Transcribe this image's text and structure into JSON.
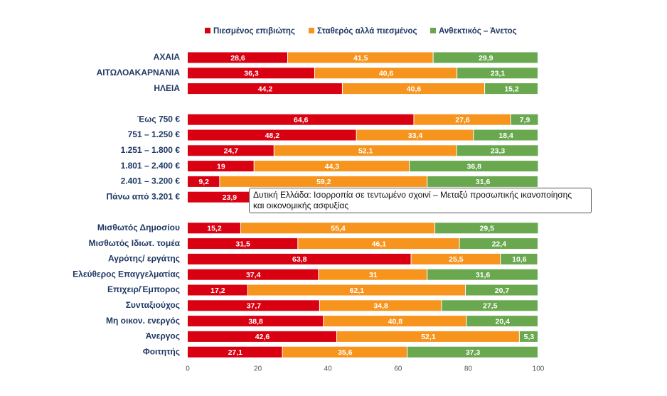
{
  "chart_data": {
    "type": "stacked-bar-horizontal",
    "categories": [
      "ΑΧΑΙΑ",
      "ΑΙΤΩΛΟΑΚΑΡΝΑΝΙΑ",
      "ΗΛΕΙΑ",
      null,
      "Έως 750 €",
      "751 – 1.250 €",
      "1.251 – 1.800 €",
      "1.801 – 2.400 €",
      "2.401 – 3.200 €",
      "Πάνω από 3.201 €",
      null,
      "Μισθωτός Δημοσίου",
      "Μισθωτός Ιδιωτ. τομέα",
      "Αγρότης/ εργάτης",
      "Ελεύθερος Επαγγελματίας",
      "Επιχειρ/Έμπορος",
      "Συνταξιούχος",
      "Μη οικον. ενεργός",
      "Άνεργος",
      "Φοιτητής"
    ],
    "series": [
      {
        "name": "Πιεσμένος επιβιώτης",
        "color": "#d90012",
        "values": [
          28.6,
          36.3,
          44.2,
          null,
          64.6,
          48.2,
          24.7,
          19,
          9.2,
          23.9,
          null,
          15.2,
          31.5,
          63.8,
          37.4,
          17.2,
          37.7,
          38.8,
          42.6,
          27.1
        ],
        "value_labels": [
          "28,6",
          "36,3",
          "44,2",
          null,
          "64,6",
          "48,2",
          "24,7",
          "19",
          "9,2",
          "23,9",
          null,
          "15,2",
          "31,5",
          "63,8",
          "37,4",
          "17,2",
          "37,7",
          "38,8",
          "42,6",
          "27,1"
        ]
      },
      {
        "name": "Σταθερός αλλά πιεσμένος",
        "color": "#f7941d",
        "values": [
          41.5,
          40.6,
          40.6,
          null,
          27.6,
          33.4,
          52.1,
          44.3,
          59.2,
          null,
          null,
          55.4,
          46.1,
          25.5,
          31,
          62.1,
          34.8,
          40.8,
          52.1,
          35.6
        ],
        "value_labels": [
          "41,5",
          "40,6",
          "40,6",
          null,
          "27,6",
          "33,4",
          "52,1",
          "44,3",
          "59,2",
          null,
          null,
          "55,4",
          "46,1",
          "25,5",
          "31",
          "62,1",
          "34,8",
          "40,8",
          "52,1",
          "35,6"
        ]
      },
      {
        "name": "Ανθεκτικός – Άνετος",
        "color": "#6aa84f",
        "values": [
          29.9,
          23.1,
          15.2,
          null,
          7.9,
          18.4,
          23.3,
          36.8,
          31.6,
          null,
          null,
          29.5,
          22.4,
          10.6,
          31.6,
          20.7,
          27.5,
          20.4,
          5.3,
          37.3
        ],
        "value_labels": [
          "29,9",
          "23,1",
          "15,2",
          null,
          "7,9",
          "18,4",
          "23,3",
          "36,8",
          "31,6",
          null,
          null,
          "29,5",
          "22,4",
          "10,6",
          "31,6",
          "20,7",
          "27,5",
          "20,4",
          "5,3",
          "37,3"
        ]
      }
    ],
    "xlim": [
      0,
      100
    ],
    "xticks": [
      0,
      20,
      40,
      60,
      80,
      100
    ],
    "grid": false,
    "legend": "top",
    "tooltip": [
      "Δυτική Ελλάδα: Ισορροπία σε τεντωμένο σχοινί – Μεταξύ προσωπικής ικανοποίησης",
      "και οικονομικής ασφυξίας"
    ]
  }
}
